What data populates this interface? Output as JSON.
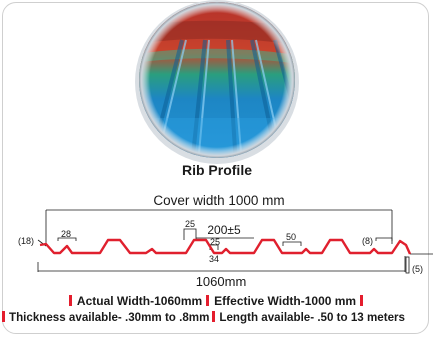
{
  "photo": {
    "label": "Rib Profile"
  },
  "diagram": {
    "cover_width": "Cover width 1000 mm",
    "overall_width": "1060mm",
    "dims": {
      "left_edge": "(18)",
      "left_flat": "28",
      "rib_top": "25",
      "rib_pitch": "200±5",
      "mini_rib_top": "25",
      "mini_rib_base": "34",
      "valley_rib": "50",
      "right_edge": "(8)",
      "end_drop": "(5)"
    }
  },
  "specs": {
    "actual_width": "Actual Width-1060mm",
    "effective_width": "Effective Width-1000 mm",
    "thickness": "Thickness available- .30mm to .8mm",
    "length": "Length available- .50 to 13 meters"
  },
  "colors": {
    "accent_red": "#e41d2d",
    "profile_red": "#e0202e",
    "sheet_blue": "#1f7fc6"
  }
}
